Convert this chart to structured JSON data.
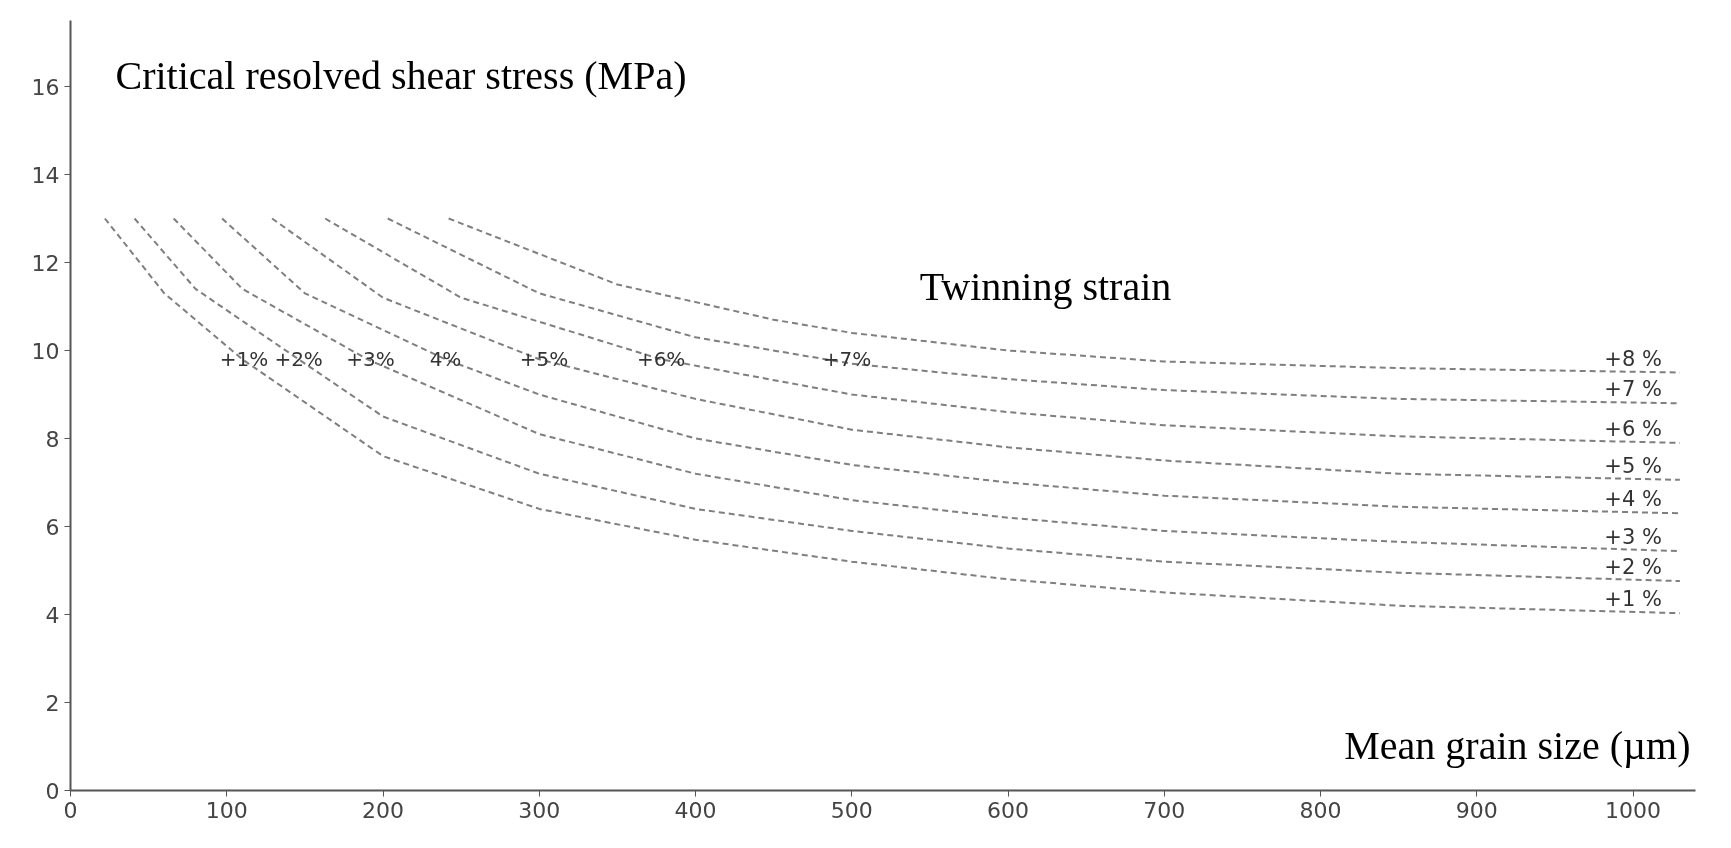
{
  "chart_data": {
    "type": "line",
    "xlabel": "Mean grain size (µm)",
    "ylabel": "Critical resolved shear stress (MPa)",
    "xlim": [
      0,
      1040
    ],
    "ylim": [
      0,
      17.5
    ],
    "xticks": [
      0,
      100,
      200,
      300,
      400,
      500,
      600,
      700,
      800,
      900,
      1000
    ],
    "yticks": [
      0,
      2,
      4,
      6,
      8,
      10,
      12,
      14,
      16
    ],
    "grid": false,
    "line_style": "dashed",
    "marker": "none",
    "series": [
      {
        "name": "+1 %",
        "color": "#7f7f7f",
        "x": [
          22,
          60,
          110,
          200,
          300,
          400,
          500,
          600,
          700,
          850,
          1030
        ],
        "values": [
          13,
          11.3,
          9.8,
          7.6,
          6.4,
          5.7,
          5.2,
          4.8,
          4.5,
          4.2,
          4.03
        ]
      },
      {
        "name": "+2 %",
        "color": "#7f7f7f",
        "x": [
          41,
          80,
          146,
          200,
          300,
          400,
          500,
          600,
          700,
          850,
          1030
        ],
        "values": [
          13,
          11.4,
          9.8,
          8.5,
          7.2,
          6.4,
          5.9,
          5.5,
          5.2,
          4.95,
          4.76
        ]
      },
      {
        "name": "+3 %",
        "color": "#7f7f7f",
        "x": [
          66,
          110,
          190,
          300,
          400,
          500,
          600,
          700,
          850,
          1030
        ],
        "values": [
          13,
          11.4,
          9.8,
          8.1,
          7.2,
          6.6,
          6.2,
          5.9,
          5.65,
          5.44
        ]
      },
      {
        "name": "+4 %",
        "color": "#7f7f7f",
        "x": [
          97,
          150,
          240,
          300,
          400,
          500,
          600,
          700,
          850,
          1030
        ],
        "values": [
          13,
          11.3,
          9.8,
          9.0,
          8.0,
          7.4,
          7.0,
          6.7,
          6.45,
          6.3
        ]
      },
      {
        "name": "+5 %",
        "color": "#7f7f7f",
        "x": [
          129,
          200,
          300,
          400,
          500,
          600,
          700,
          850,
          1030
        ],
        "values": [
          13,
          11.2,
          9.8,
          8.9,
          8.2,
          7.8,
          7.5,
          7.2,
          7.06
        ]
      },
      {
        "name": "+6 %",
        "color": "#7f7f7f",
        "x": [
          163,
          250,
          378,
          500,
          600,
          700,
          850,
          1030
        ],
        "values": [
          13,
          11.2,
          9.8,
          9.0,
          8.6,
          8.3,
          8.05,
          7.9
        ]
      },
      {
        "name": "+7 %",
        "color": "#7f7f7f",
        "x": [
          203,
          300,
          400,
          500,
          600,
          700,
          850,
          1030
        ],
        "values": [
          13,
          11.3,
          10.3,
          9.7,
          9.35,
          9.1,
          8.9,
          8.8
        ]
      },
      {
        "name": "+8 %",
        "color": "#7f7f7f",
        "x": [
          242,
          350,
          450,
          500,
          600,
          700,
          850,
          1030
        ],
        "values": [
          13,
          11.5,
          10.7,
          10.4,
          10.0,
          9.75,
          9.6,
          9.5
        ]
      }
    ],
    "annotations": [
      "Twinning strain",
      {
        "text": "+1%",
        "x": 111,
        "y": 9.8
      },
      {
        "text": "+2%",
        "x": 146,
        "y": 9.8
      },
      {
        "text": "+3%",
        "x": 192,
        "y": 9.8
      },
      {
        "text": "4%",
        "x": 240,
        "y": 9.8
      },
      {
        "text": "+5%",
        "x": 303,
        "y": 9.8
      },
      {
        "text": "+6%",
        "x": 378,
        "y": 9.8
      },
      {
        "text": "+7%",
        "x": 497,
        "y": 9.8
      }
    ]
  }
}
